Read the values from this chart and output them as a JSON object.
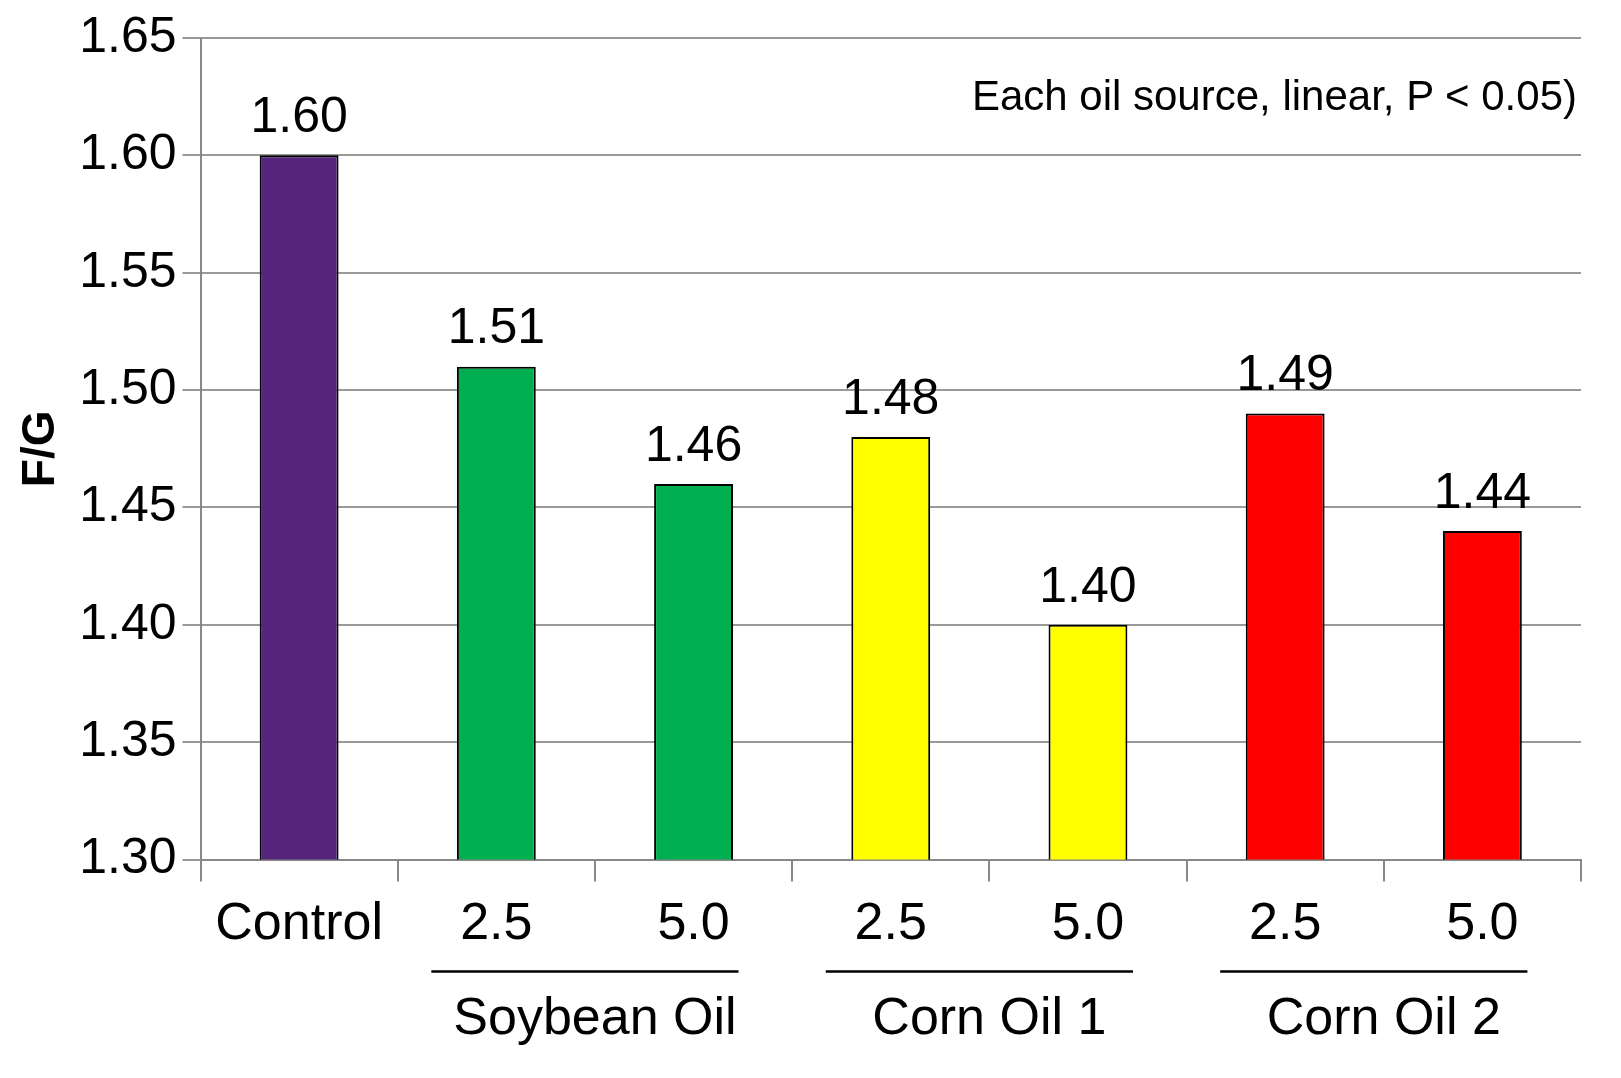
{
  "chart_data": {
    "type": "bar",
    "ylabel": "F/G",
    "categories": [
      "Control",
      "2.5",
      "5.0",
      "2.5",
      "5.0",
      "2.5",
      "5.0"
    ],
    "values": [
      1.6,
      1.51,
      1.46,
      1.48,
      1.4,
      1.49,
      1.44
    ],
    "colors": [
      "#56267d",
      "#00b050",
      "#00b050",
      "#ffff00",
      "#ffff00",
      "#ff0000",
      "#ff0000"
    ],
    "value_labels": [
      "1.60",
      "1.51",
      "1.46",
      "1.48",
      "1.40",
      "1.49",
      "1.44"
    ],
    "ylim": [
      1.3,
      1.65
    ],
    "yticks": [
      {
        "value": 1.3,
        "label": "1.30"
      },
      {
        "value": 1.35,
        "label": "1.35"
      },
      {
        "value": 1.4,
        "label": "1.40"
      },
      {
        "value": 1.45,
        "label": "1.45"
      },
      {
        "value": 1.5,
        "label": "1.50"
      },
      {
        "value": 1.55,
        "label": "1.55"
      },
      {
        "value": 1.6,
        "label": "1.60"
      },
      {
        "value": 1.65,
        "label": "1.65"
      }
    ],
    "grid": "y",
    "legend": false,
    "annotations": [
      "Each oil source, linear, P < 0.05)",
      "Soybean Oil",
      "Corn Oil 1",
      "Corn Oil 2"
    ]
  }
}
